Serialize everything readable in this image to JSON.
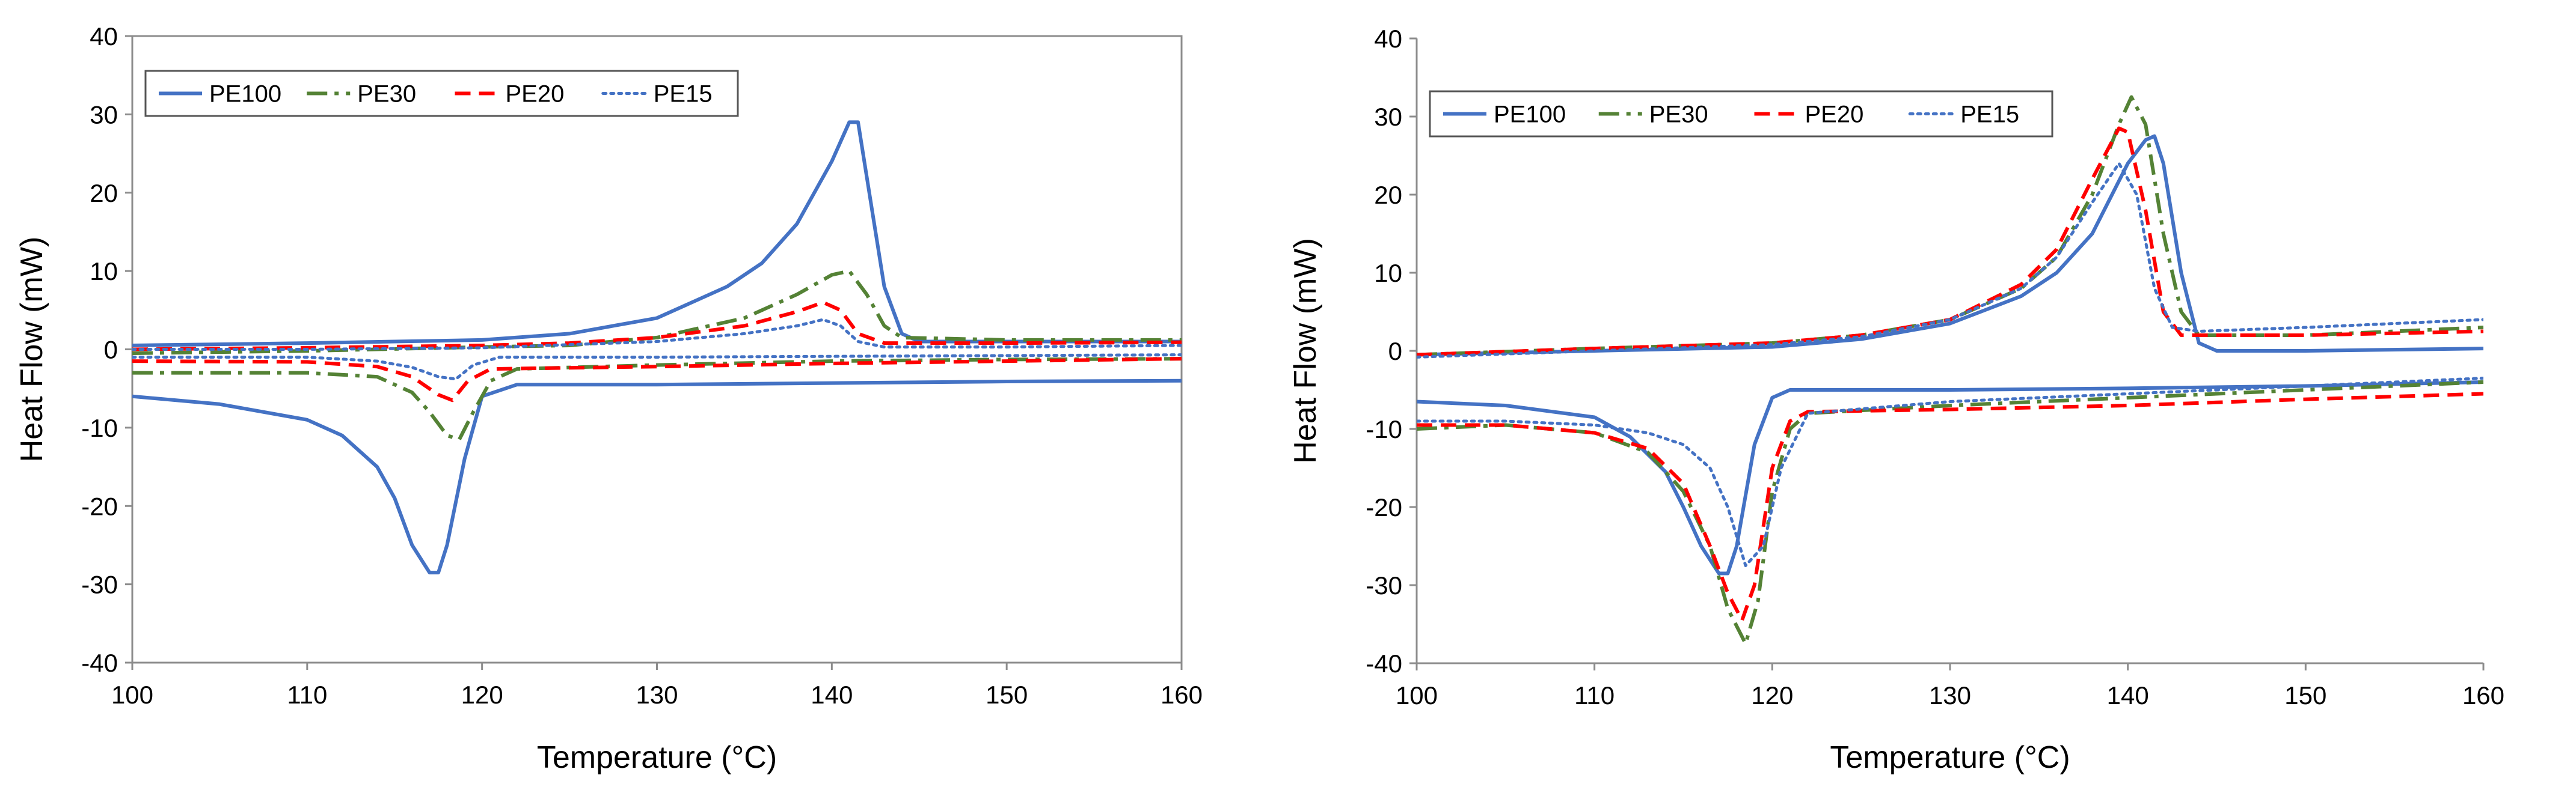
{
  "chart_data": [
    {
      "type": "line",
      "xlabel": "Temperature (°C)",
      "ylabel": "Heat Flow (mW)",
      "xlim": [
        100,
        160
      ],
      "ylim": [
        -40,
        40
      ],
      "xticks": [
        100,
        110,
        120,
        130,
        140,
        150,
        160
      ],
      "yticks": [
        40,
        30,
        20,
        10,
        0,
        -10,
        -20,
        -30,
        -40
      ],
      "grid": false,
      "legend_position": "top-left",
      "series": [
        {
          "name": "PE100",
          "color": "#4472C4",
          "dash": "solid",
          "heating": [
            [
              100,
              0.5
            ],
            [
              110,
              0.8
            ],
            [
              120,
              1.2
            ],
            [
              125,
              2
            ],
            [
              130,
              4
            ],
            [
              134,
              8
            ],
            [
              136,
              11
            ],
            [
              138,
              16
            ],
            [
              140,
              24
            ],
            [
              141,
              29
            ],
            [
              141.5,
              29
            ],
            [
              142,
              22
            ],
            [
              143,
              8
            ],
            [
              144,
              2
            ],
            [
              145,
              1
            ],
            [
              150,
              1
            ],
            [
              160,
              1
            ]
          ],
          "cooling": [
            [
              100,
              -6
            ],
            [
              105,
              -7
            ],
            [
              110,
              -9
            ],
            [
              112,
              -11
            ],
            [
              114,
              -15
            ],
            [
              115,
              -19
            ],
            [
              116,
              -25
            ],
            [
              117,
              -28.5
            ],
            [
              117.5,
              -28.5
            ],
            [
              118,
              -25
            ],
            [
              119,
              -14
            ],
            [
              120,
              -6
            ],
            [
              122,
              -4.5
            ],
            [
              130,
              -4.5
            ],
            [
              140,
              -4.3
            ],
            [
              150,
              -4.1
            ],
            [
              160,
              -4
            ]
          ]
        },
        {
          "name": "PE30",
          "color": "#548235",
          "dash": "dashdot",
          "heating": [
            [
              100,
              -0.5
            ],
            [
              110,
              -0.2
            ],
            [
              120,
              0.3
            ],
            [
              125,
              0.5
            ],
            [
              130,
              1.5
            ],
            [
              135,
              4
            ],
            [
              138,
              7
            ],
            [
              140,
              9.5
            ],
            [
              141,
              10
            ],
            [
              142,
              7
            ],
            [
              143,
              3
            ],
            [
              144,
              1.5
            ],
            [
              150,
              1.2
            ],
            [
              160,
              1.2
            ]
          ],
          "cooling": [
            [
              100,
              -3
            ],
            [
              110,
              -3
            ],
            [
              114,
              -3.5
            ],
            [
              116,
              -5.5
            ],
            [
              117,
              -8
            ],
            [
              118,
              -11
            ],
            [
              118.7,
              -11.5
            ],
            [
              119.5,
              -8
            ],
            [
              120.5,
              -4
            ],
            [
              122,
              -2.5
            ],
            [
              130,
              -2
            ],
            [
              140,
              -1.5
            ],
            [
              150,
              -1.3
            ],
            [
              160,
              -1.2
            ]
          ]
        },
        {
          "name": "PE20",
          "color": "#FF0000",
          "dash": "dashed",
          "heating": [
            [
              100,
              0
            ],
            [
              110,
              0.2
            ],
            [
              120,
              0.5
            ],
            [
              125,
              0.8
            ],
            [
              130,
              1.5
            ],
            [
              135,
              3
            ],
            [
              138,
              4.8
            ],
            [
              139.5,
              6
            ],
            [
              140.5,
              5
            ],
            [
              141.5,
              2
            ],
            [
              143,
              0.8
            ],
            [
              150,
              0.8
            ],
            [
              160,
              0.9
            ]
          ],
          "cooling": [
            [
              100,
              -1.5
            ],
            [
              110,
              -1.6
            ],
            [
              114,
              -2.2
            ],
            [
              116,
              -3.5
            ],
            [
              117.5,
              -5.8
            ],
            [
              118.3,
              -6.5
            ],
            [
              119.2,
              -4
            ],
            [
              120.5,
              -2.5
            ],
            [
              130,
              -2.2
            ],
            [
              140,
              -1.8
            ],
            [
              150,
              -1.5
            ],
            [
              160,
              -1.2
            ]
          ]
        },
        {
          "name": "PE15",
          "color": "#4472C4",
          "dash": "dotted",
          "heating": [
            [
              100,
              0
            ],
            [
              110,
              0
            ],
            [
              120,
              0.2
            ],
            [
              130,
              1
            ],
            [
              135,
              2
            ],
            [
              138,
              3
            ],
            [
              139.5,
              3.8
            ],
            [
              140.5,
              3
            ],
            [
              141.5,
              1
            ],
            [
              143,
              0.3
            ],
            [
              150,
              0.3
            ],
            [
              160,
              0.5
            ]
          ],
          "cooling": [
            [
              100,
              -1
            ],
            [
              110,
              -1
            ],
            [
              114,
              -1.5
            ],
            [
              116,
              -2.3
            ],
            [
              117.5,
              -3.5
            ],
            [
              118.5,
              -3.8
            ],
            [
              119.5,
              -2
            ],
            [
              121,
              -1
            ],
            [
              130,
              -1
            ],
            [
              140,
              -0.9
            ],
            [
              150,
              -0.8
            ],
            [
              160,
              -0.7
            ]
          ]
        }
      ]
    },
    {
      "type": "line",
      "xlabel": "Temperature (°C)",
      "ylabel": "Heat Flow (mW)",
      "xlim": [
        100,
        160
      ],
      "ylim": [
        -40,
        40
      ],
      "xticks": [
        100,
        110,
        120,
        130,
        140,
        150,
        160
      ],
      "yticks": [
        40,
        30,
        20,
        10,
        0,
        -10,
        -20,
        -30,
        -40
      ],
      "grid": false,
      "legend_position": "top-left",
      "series": [
        {
          "name": "PE100",
          "color": "#4472C4",
          "dash": "solid",
          "heating": [
            [
              100,
              -0.5
            ],
            [
              110,
              0
            ],
            [
              120,
              0.5
            ],
            [
              125,
              1.5
            ],
            [
              130,
              3.5
            ],
            [
              134,
              7
            ],
            [
              136,
              10
            ],
            [
              138,
              15
            ],
            [
              140,
              24
            ],
            [
              141,
              27
            ],
            [
              141.5,
              27.5
            ],
            [
              142,
              24
            ],
            [
              143,
              10
            ],
            [
              144,
              1
            ],
            [
              145,
              0
            ],
            [
              150,
              0
            ],
            [
              160,
              0.3
            ]
          ],
          "cooling": [
            [
              100,
              -6.5
            ],
            [
              105,
              -7
            ],
            [
              110,
              -8.5
            ],
            [
              112,
              -11
            ],
            [
              114,
              -15.5
            ],
            [
              115,
              -20
            ],
            [
              116,
              -25
            ],
            [
              117,
              -28.5
            ],
            [
              117.5,
              -28.5
            ],
            [
              118,
              -25
            ],
            [
              119,
              -12
            ],
            [
              120,
              -6
            ],
            [
              121,
              -5
            ],
            [
              130,
              -5
            ],
            [
              140,
              -4.8
            ],
            [
              150,
              -4.5
            ],
            [
              160,
              -4
            ]
          ]
        },
        {
          "name": "PE30",
          "color": "#548235",
          "dash": "dashdot",
          "heating": [
            [
              100,
              -0.5
            ],
            [
              110,
              0.3
            ],
            [
              120,
              1
            ],
            [
              125,
              2
            ],
            [
              130,
              4
            ],
            [
              134,
              8
            ],
            [
              136,
              12
            ],
            [
              138,
              20
            ],
            [
              139.5,
              29
            ],
            [
              140.2,
              32.5
            ],
            [
              141,
              29
            ],
            [
              142,
              15
            ],
            [
              143,
              5
            ],
            [
              144,
              2
            ],
            [
              150,
              2
            ],
            [
              160,
              3
            ]
          ],
          "cooling": [
            [
              100,
              -10
            ],
            [
              105,
              -9.5
            ],
            [
              110,
              -10.5
            ],
            [
              113,
              -13
            ],
            [
              115,
              -18
            ],
            [
              116.5,
              -25
            ],
            [
              117.5,
              -33
            ],
            [
              118.5,
              -37.5
            ],
            [
              119.2,
              -32
            ],
            [
              120,
              -18
            ],
            [
              121,
              -10
            ],
            [
              122,
              -8
            ],
            [
              130,
              -7
            ],
            [
              140,
              -6
            ],
            [
              150,
              -5
            ],
            [
              160,
              -4
            ]
          ]
        },
        {
          "name": "PE20",
          "color": "#FF0000",
          "dash": "dashed",
          "heating": [
            [
              100,
              -0.5
            ],
            [
              110,
              0.3
            ],
            [
              120,
              1
            ],
            [
              125,
              2
            ],
            [
              130,
              4
            ],
            [
              134,
              8.5
            ],
            [
              136,
              13
            ],
            [
              138,
              22
            ],
            [
              139.5,
              28.5
            ],
            [
              140,
              28
            ],
            [
              141,
              18
            ],
            [
              142,
              5
            ],
            [
              143,
              2
            ],
            [
              150,
              2
            ],
            [
              160,
              2.5
            ]
          ],
          "cooling": [
            [
              100,
              -9.5
            ],
            [
              105,
              -9.5
            ],
            [
              110,
              -10.5
            ],
            [
              113,
              -12.5
            ],
            [
              115,
              -17
            ],
            [
              116.5,
              -25
            ],
            [
              117.5,
              -31
            ],
            [
              118.3,
              -34.5
            ],
            [
              119,
              -30
            ],
            [
              120,
              -15
            ],
            [
              121,
              -9
            ],
            [
              122,
              -7.8
            ],
            [
              130,
              -7.5
            ],
            [
              140,
              -7
            ],
            [
              150,
              -6.2
            ],
            [
              160,
              -5.5
            ]
          ]
        },
        {
          "name": "PE15",
          "color": "#4472C4",
          "dash": "dotted",
          "heating": [
            [
              100,
              -0.8
            ],
            [
              110,
              0
            ],
            [
              120,
              0.8
            ],
            [
              125,
              1.8
            ],
            [
              130,
              4
            ],
            [
              134,
              8
            ],
            [
              136,
              12
            ],
            [
              138,
              19
            ],
            [
              139.5,
              24
            ],
            [
              140.5,
              20
            ],
            [
              141.5,
              8
            ],
            [
              142.5,
              3
            ],
            [
              144,
              2.5
            ],
            [
              150,
              3
            ],
            [
              160,
              4
            ]
          ],
          "cooling": [
            [
              100,
              -9
            ],
            [
              105,
              -9
            ],
            [
              110,
              -9.5
            ],
            [
              113,
              -10.5
            ],
            [
              115,
              -12
            ],
            [
              116.5,
              -15
            ],
            [
              117.5,
              -20
            ],
            [
              118.5,
              -27.5
            ],
            [
              119.5,
              -25
            ],
            [
              120.5,
              -15
            ],
            [
              122,
              -8
            ],
            [
              130,
              -6.5
            ],
            [
              140,
              -5.5
            ],
            [
              150,
              -4.5
            ],
            [
              160,
              -3.5
            ]
          ]
        }
      ]
    }
  ]
}
